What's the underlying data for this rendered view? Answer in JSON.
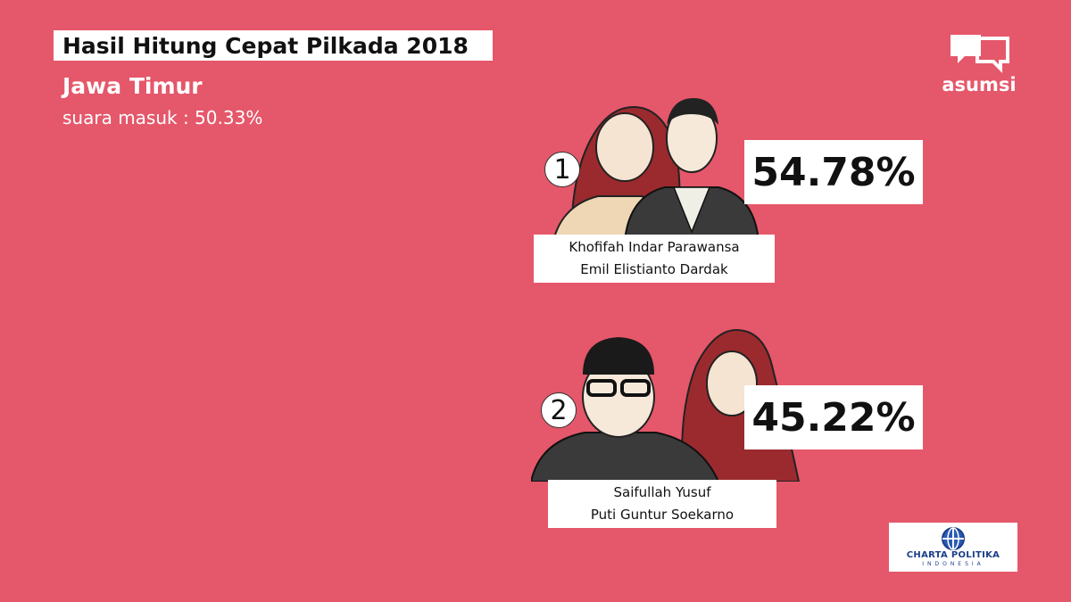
{
  "header": {
    "title": "Hasil Hitung Cepat Pilkada 2018",
    "region": "Jawa Timur",
    "votes_in": "suara masuk : 50.33%"
  },
  "brand": {
    "logo_text": "asumsi",
    "icon": "speech-bubbles-icon"
  },
  "candidates": [
    {
      "number": "1",
      "percent": "54.78%",
      "names": [
        "Khofifah Indar Parawansa",
        "Emil Elistianto Dardak"
      ]
    },
    {
      "number": "2",
      "percent": "45.22%",
      "names": [
        "Saifullah Yusuf",
        "Puti Guntur Soekarno"
      ]
    }
  ],
  "source": {
    "name": "CHARTA POLITIKA",
    "sub": "INDONESIA"
  },
  "colors": {
    "background": "#E5576A",
    "headscarf": "#9A2A2E",
    "suit": "#3A3A3A"
  }
}
